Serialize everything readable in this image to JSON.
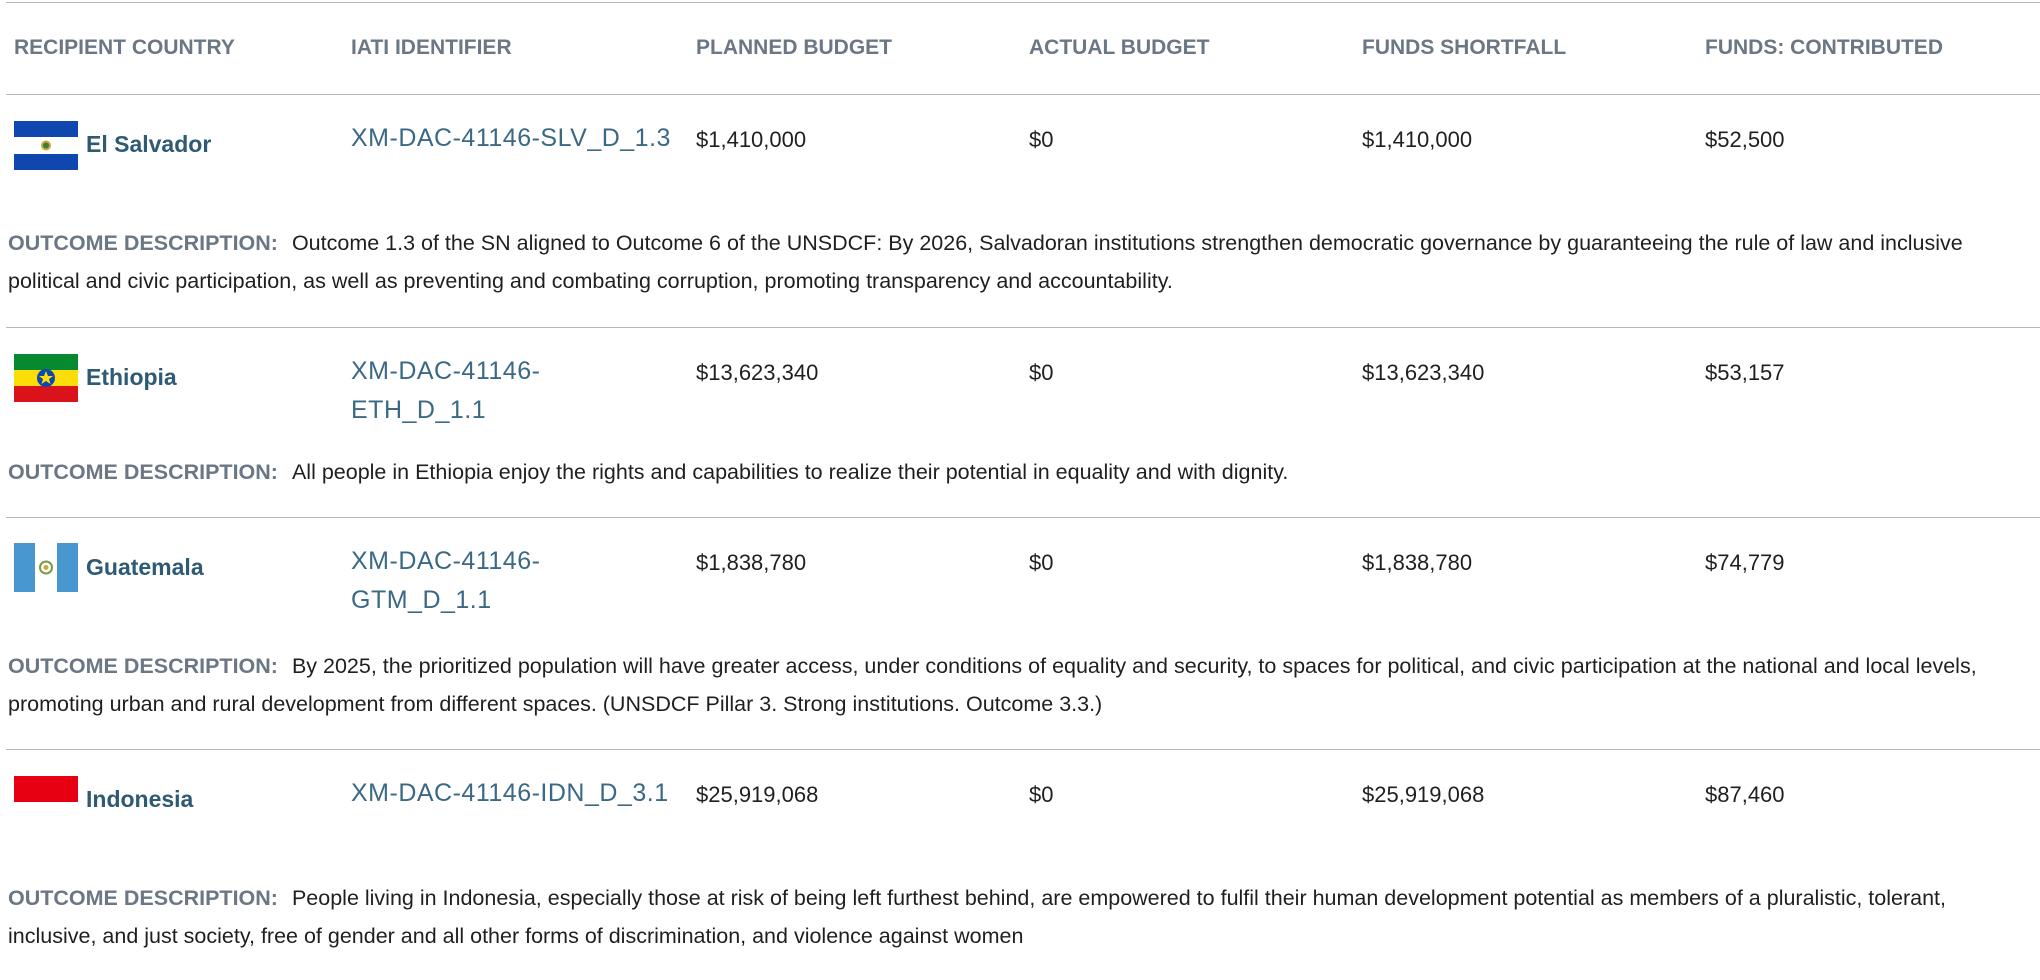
{
  "table": {
    "headers": [
      "RECIPIENT COUNTRY",
      "IATI IDENTIFIER",
      "PLANNED BUDGET",
      "ACTUAL BUDGET",
      "FUNDS SHORTFALL",
      "FUNDS: CONTRIBUTED"
    ],
    "outcome_label": "OUTCOME DESCRIPTION:",
    "rows": [
      {
        "country": "El Salvador",
        "iati": "XM-DAC-41146-SLV_D_1.3",
        "planned": "$1,410,000",
        "actual": "$0",
        "shortfall": "$1,410,000",
        "contributed": "$52,500",
        "description": "Outcome 1.3 of the SN aligned to Outcome 6 of the UNSDCF: By 2026, Salvadoran institutions strengthen democratic governance by guaranteeing the rule of law and inclusive political and civic participation, as well as preventing and combating corruption, promoting transparency and accountability."
      },
      {
        "country": "Ethiopia",
        "iati": "XM-DAC-41146-ETH_D_1.1",
        "planned": "$13,623,340",
        "actual": "$0",
        "shortfall": "$13,623,340",
        "contributed": "$53,157",
        "description": "All people in Ethiopia enjoy the rights and capabilities to realize their potential in equality and with dignity."
      },
      {
        "country": "Guatemala",
        "iati": "XM-DAC-41146-GTM_D_1.1",
        "planned": "$1,838,780",
        "actual": "$0",
        "shortfall": "$1,838,780",
        "contributed": "$74,779",
        "description": "By 2025, the prioritized population will have greater access, under conditions of equality and security, to spaces for political, and civic participation at the national and local levels, promoting urban and rural development from different spaces. (UNSDCF Pillar 3. Strong institutions. Outcome 3.3.)"
      },
      {
        "country": "Indonesia",
        "iati": "XM-DAC-41146-IDN_D_3.1",
        "planned": "$25,919,068",
        "actual": "$0",
        "shortfall": "$25,919,068",
        "contributed": "$87,460",
        "description": "People living in Indonesia, especially those at risk of being left furthest behind, are empowered to fulfil their human development potential as members of a pluralistic, tolerant, inclusive, and just society, free of gender and all other forms of discrimination, and violence against women"
      }
    ]
  }
}
